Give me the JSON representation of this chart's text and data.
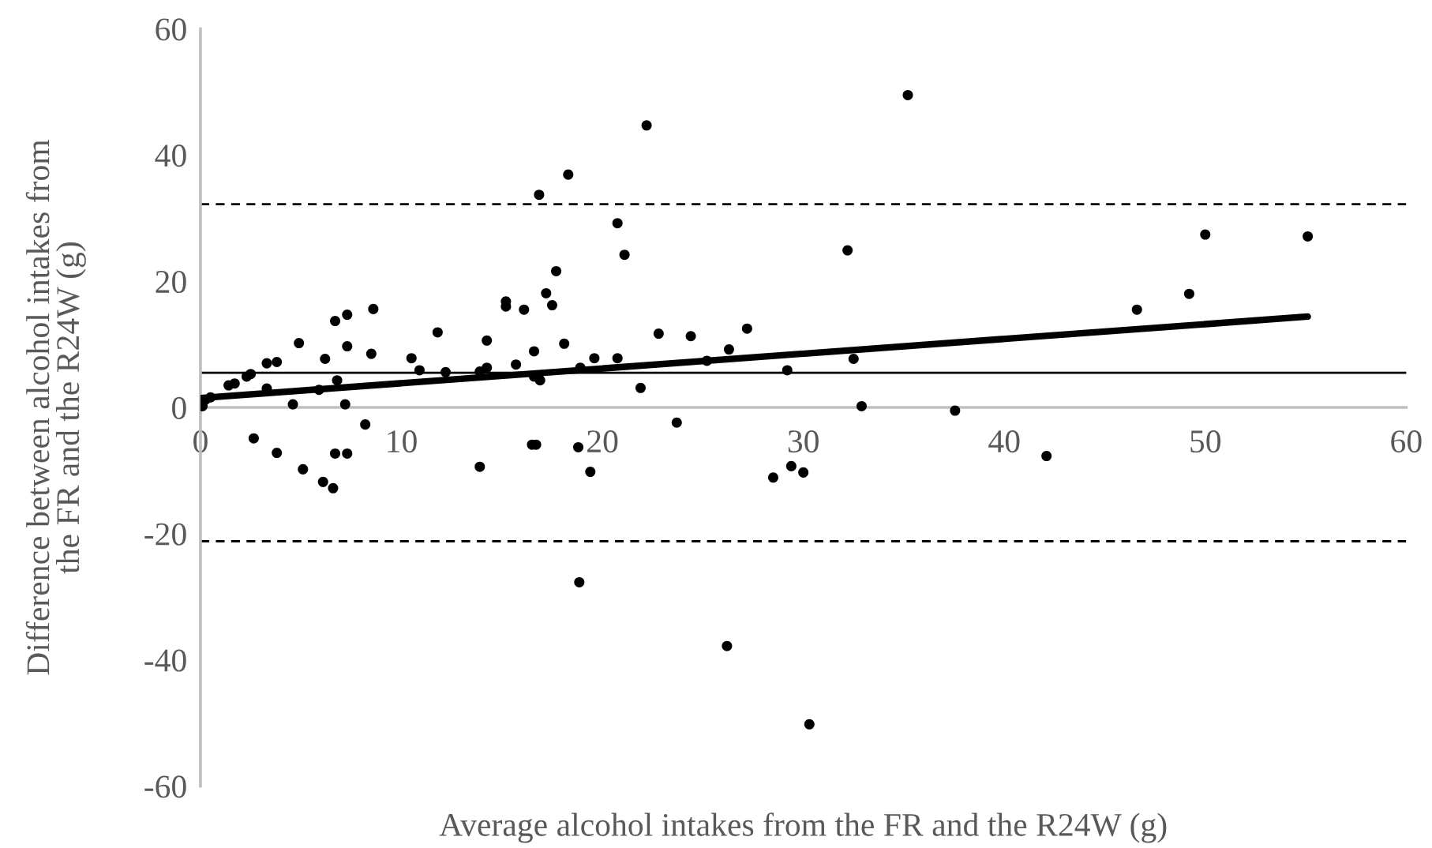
{
  "chart_data": {
    "type": "scatter",
    "xlabel": "Average alcohol intakes from the FR and the R24W (g)",
    "ylabel": "Difference between alcohol intakes from\nthe FR and the R24W (g)",
    "xlim": [
      0,
      60
    ],
    "ylim": [
      -60,
      60
    ],
    "xticks": [
      0,
      10,
      20,
      30,
      40,
      50,
      60
    ],
    "yticks": [
      -60,
      -40,
      -20,
      0,
      20,
      40,
      60
    ],
    "grid": false,
    "legend": false,
    "marker": "circle",
    "series": [
      {
        "color": "#000000",
        "x": [
          0.1,
          0.24,
          0.5,
          1.4,
          1.7,
          2.3,
          2.5,
          3.3,
          3.8,
          3.3,
          2.65,
          3.8,
          4.6,
          4.9,
          5.1,
          5.9,
          6.2,
          6.1,
          6.6,
          6.7,
          6.8,
          6.7,
          7.2,
          7.3,
          7.3,
          7.3,
          8.2,
          8.5,
          8.6,
          10.5,
          10.9,
          11.8,
          12.2,
          13.9,
          13.9,
          14.25,
          14.25,
          15.2,
          15.2,
          15.7,
          16.1,
          16.5,
          16.7,
          16.6,
          16.9,
          16.6,
          17.2,
          17.5,
          17.7,
          18.1,
          18.8,
          18.9,
          16.85,
          18.3,
          22.2,
          20.75,
          21.1,
          19.6,
          20.75,
          21.9,
          22.8,
          23.7,
          24.4,
          25.2,
          26.3,
          27.2,
          29.2,
          28.5,
          29.4,
          30.0,
          32.2,
          32.5,
          32.9,
          19.4,
          18.85,
          37.55,
          42.1,
          46.6,
          49.2,
          26.2,
          30.3,
          50.0,
          55.1,
          35.2
        ],
        "values": [
          0.2,
          1.2,
          1.6,
          3.5,
          3.8,
          4.9,
          5.3,
          7.0,
          7.2,
          3.0,
          -4.9,
          -7.2,
          0.5,
          10.2,
          -9.8,
          2.8,
          7.7,
          -11.8,
          -12.8,
          13.7,
          4.3,
          -7.3,
          0.5,
          14.7,
          9.7,
          -7.3,
          -2.7,
          8.5,
          15.6,
          7.8,
          5.9,
          11.9,
          5.6,
          -9.4,
          5.7,
          10.6,
          6.3,
          16.8,
          16.0,
          6.8,
          15.5,
          -5.9,
          -5.9,
          4.9,
          4.3,
          8.9,
          18.1,
          16.2,
          21.6,
          10.1,
          -6.3,
          6.3,
          33.7,
          36.9,
          44.7,
          29.2,
          24.2,
          7.8,
          7.8,
          3.1,
          11.7,
          -2.4,
          11.3,
          7.4,
          9.2,
          12.5,
          5.9,
          -11.1,
          -9.3,
          -10.3,
          24.9,
          7.7,
          0.2,
          -10.2,
          -27.7,
          -0.5,
          -7.7,
          15.5,
          18.0,
          -37.8,
          -50.2,
          27.4,
          27.1,
          49.5
        ]
      },
      {
        "type": "line",
        "color": "#000000",
        "marker": "none",
        "line_style": "solid",
        "x": [
          0,
          55.1
        ],
        "values": [
          1.5,
          14.4
        ]
      }
    ],
    "ref_lines": [
      {
        "axis": "y",
        "value": 5.5,
        "label": null,
        "color": "#000000",
        "line_style": "solid"
      },
      {
        "axis": "y",
        "value": 32.2,
        "label": null,
        "color": "#000000",
        "line_style": "dashed"
      },
      {
        "axis": "y",
        "value": -21.2,
        "label": null,
        "color": "#000000",
        "line_style": "dashed"
      }
    ]
  }
}
